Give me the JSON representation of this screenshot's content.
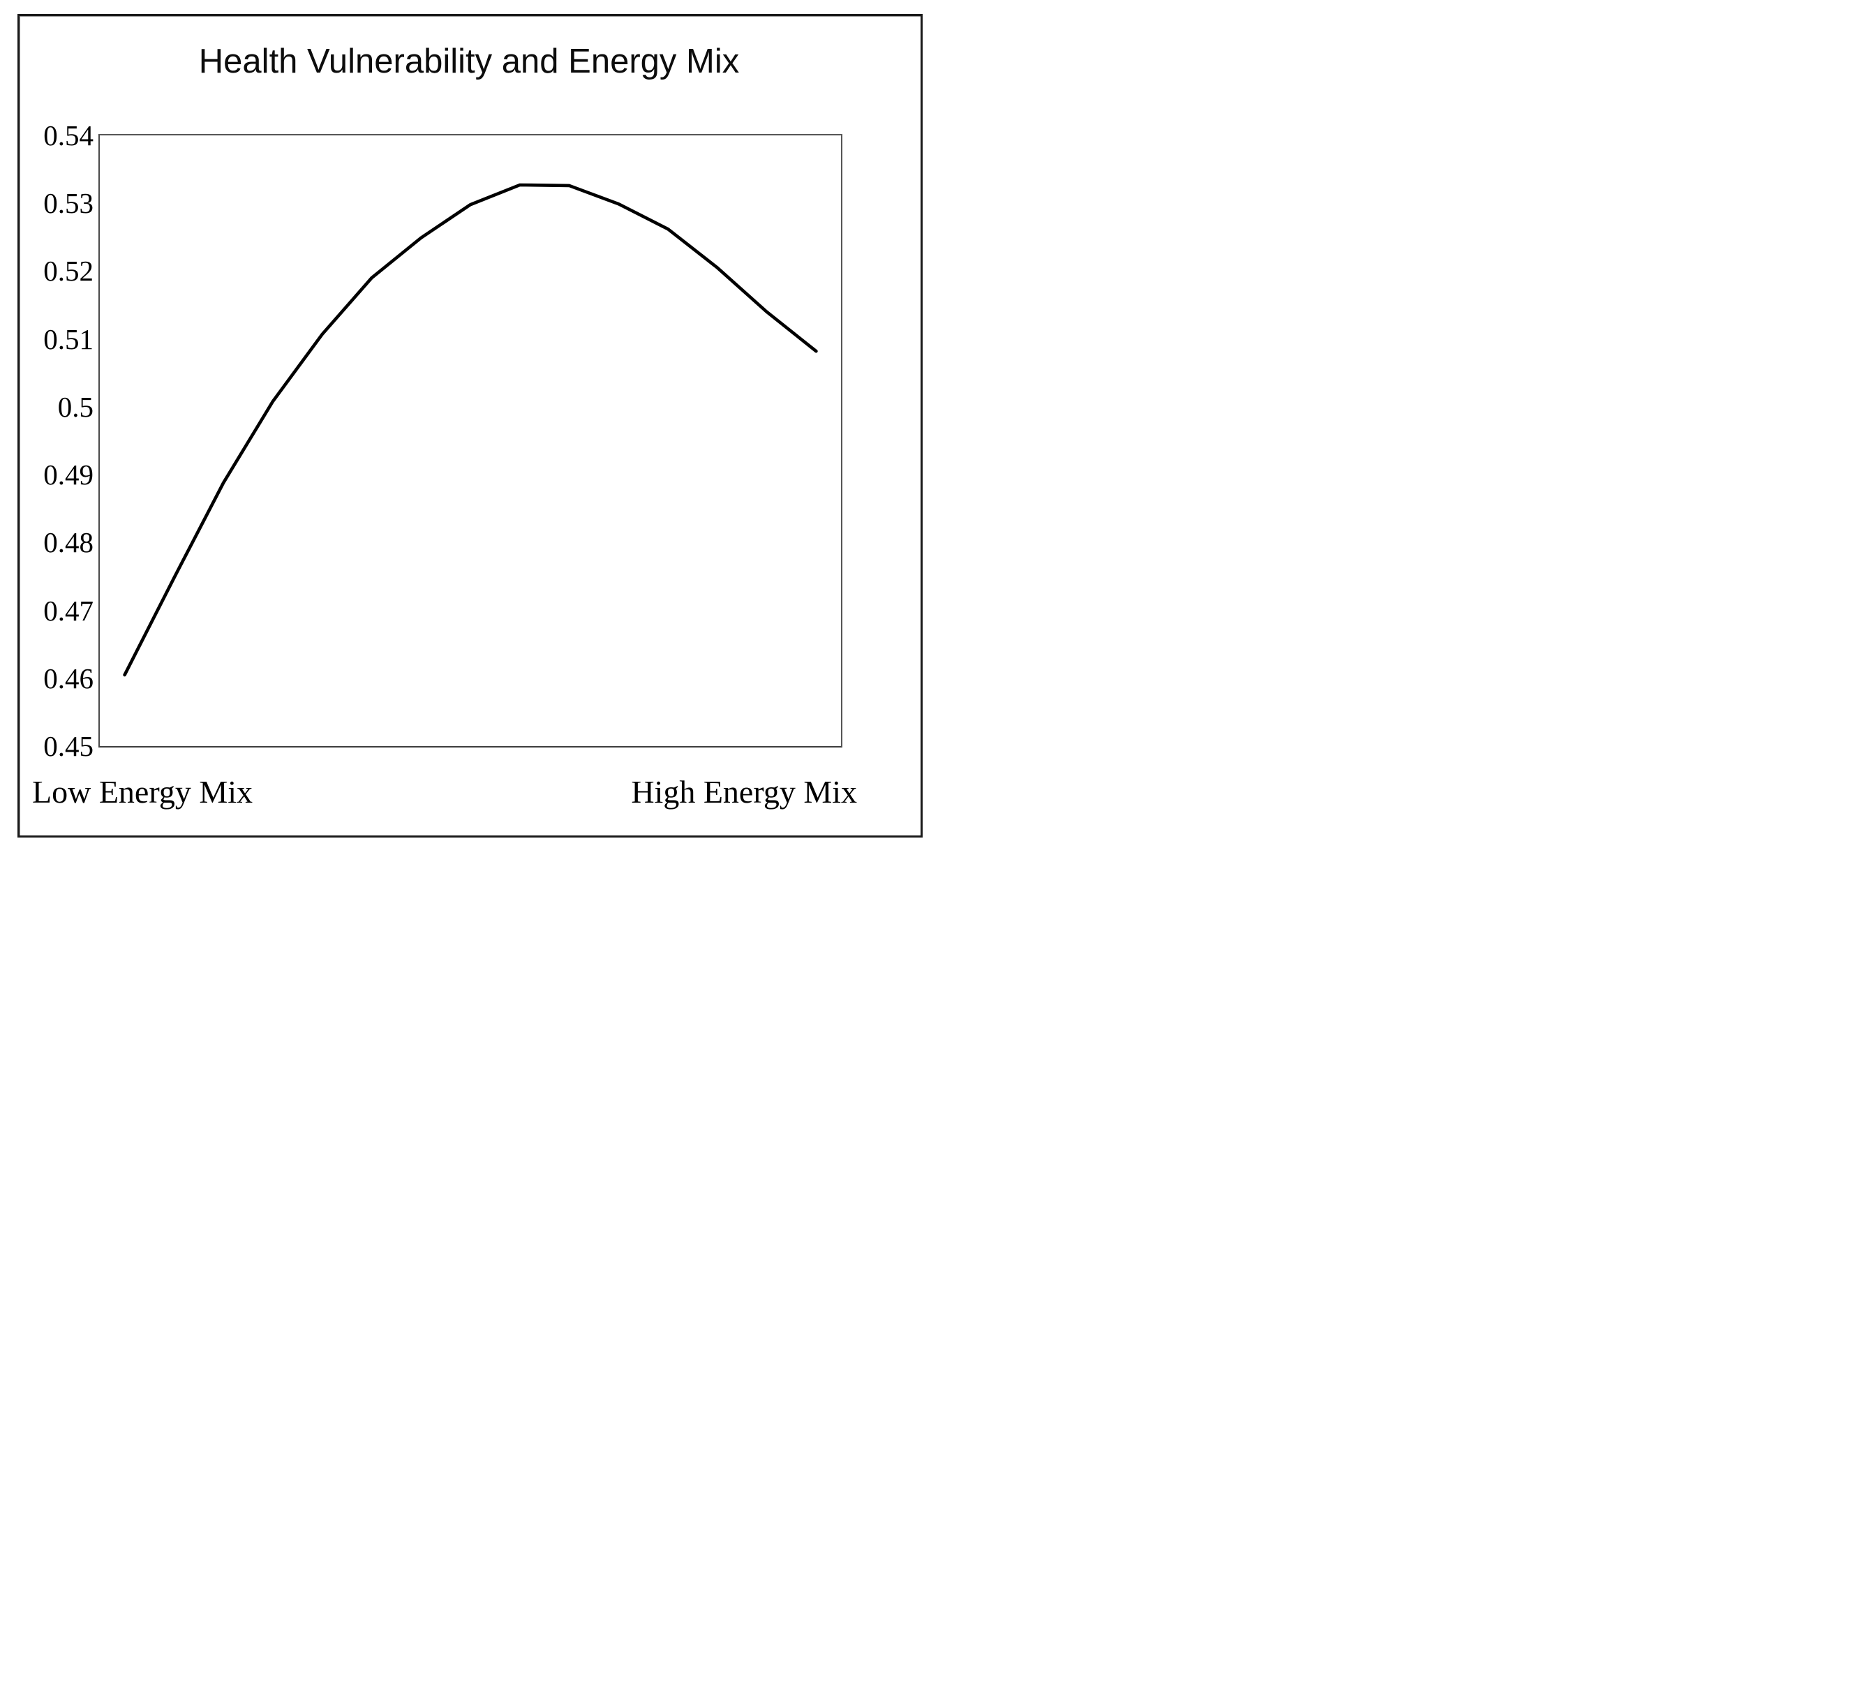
{
  "figure": {
    "title": "Health Vulnerability and Energy Mix",
    "x_label_left": "Low Energy Mix",
    "x_label_right": "High Energy Mix"
  },
  "chart_data": {
    "type": "line",
    "title": "Health Vulnerability and Energy Mix",
    "series": [
      {
        "name": "health-vulnerability-curve",
        "values": [
          0.4605,
          0.4748,
          0.4888,
          0.5008,
          0.5107,
          0.519,
          0.5249,
          0.5298,
          0.5327,
          0.5326,
          0.5299,
          0.5262,
          0.5205,
          0.514,
          0.5082
        ]
      }
    ],
    "x_axis": {
      "left_label": "Low Energy Mix",
      "right_label": "High Energy Mix",
      "tick_labels": []
    },
    "ylim": [
      0.45,
      0.54
    ],
    "y_tick_step": 0.01,
    "y_tick_labels": [
      "0.54",
      "0.53",
      "0.52",
      "0.51",
      "0.5",
      "0.49",
      "0.48",
      "0.47",
      "0.46",
      "0.45"
    ],
    "grid": false,
    "legend": "none",
    "line_color": "#000000",
    "plot_border_color": "#565656",
    "frame_border_color": "#1a1a1a",
    "background_color": "#ffffff"
  }
}
